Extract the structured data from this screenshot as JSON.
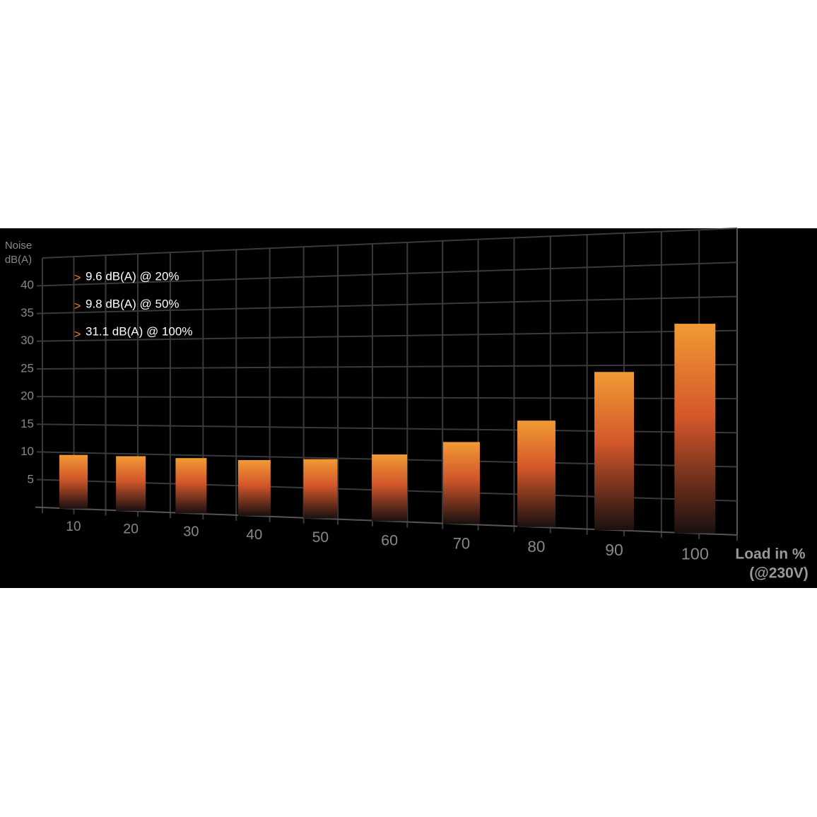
{
  "chart_data": {
    "type": "bar",
    "y_label": [
      "Noise",
      "dB(A)"
    ],
    "x_label": [
      "Load in %",
      "(@230V)"
    ],
    "bullet": ">",
    "annotations": [
      "9.6 dB(A) @ 20%",
      "9.8  dB(A) @ 50%",
      "31.1  dB(A) @ 100%"
    ],
    "categories": [
      "10",
      "20",
      "30",
      "40",
      "50",
      "60",
      "70",
      "80",
      "90",
      "100"
    ],
    "values": [
      9.6,
      9.6,
      9.5,
      9.4,
      9.8,
      10.8,
      13,
      16.5,
      24,
      31.1
    ],
    "color": "#ee8a2e",
    "ylim": [
      0,
      45
    ],
    "yticks": [
      5,
      10,
      15,
      20,
      25,
      30,
      35,
      40
    ],
    "grid": true
  }
}
